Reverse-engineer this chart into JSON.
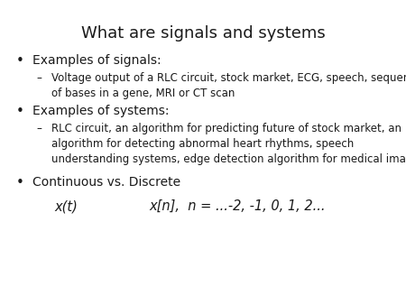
{
  "title": "What are signals and systems",
  "title_fontsize": 13,
  "background_color": "#ffffff",
  "text_color": "#1a1a1a",
  "bullet1": "Examples of signals:",
  "sub1": "Voltage output of a RLC circuit, stock market, ECG, speech, sequences\nof bases in a gene, MRI or CT scan",
  "bullet2": "Examples of systems:",
  "sub2": "RLC circuit, an algorithm for predicting future of stock market, an\nalgorithm for detecting abnormal heart rhythms, speech\nunderstanding systems, edge detection algorithm for medical images.",
  "bullet3": "Continuous vs. Discrete",
  "line4a": "x(t)",
  "line4b": "x[n],  n = ...-2, -1, 0, 1, 2...",
  "bullet_fontsize": 10,
  "sub_fontsize": 8.5,
  "math_fontsize": 10.5,
  "bullet_sym": "•",
  "dash_sym": "–"
}
